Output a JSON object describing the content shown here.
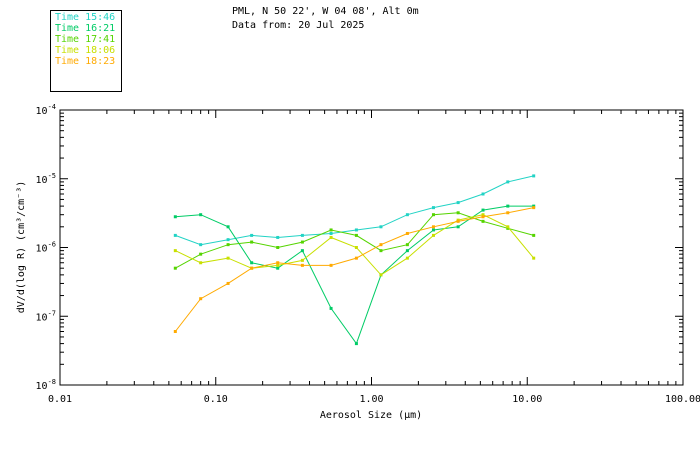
{
  "header": {
    "line1": "PML, N 50 22', W 04 08', Alt 0m",
    "line2": "Data from: 20 Jul 2025"
  },
  "chart_data": {
    "type": "line",
    "title": "PML, N 50 22', W 04 08', Alt 0m",
    "subtitle": "Data from: 20 Jul 2025",
    "xlabel": "Aerosol Size (µm)",
    "ylabel": "dV/d(log R) (cm³/cm⁻³)",
    "xscale": "log",
    "yscale": "log",
    "xlim": [
      0.01,
      100
    ],
    "ylim": [
      1e-08,
      0.0001
    ],
    "x_ticks": [
      "0.01",
      "0.10",
      "1.00",
      "10.00",
      "100.00"
    ],
    "y_ticks": [
      {
        "mant": "10",
        "exp": "-8",
        "value": 1e-08
      },
      {
        "mant": "10",
        "exp": "-7",
        "value": 1e-07
      },
      {
        "mant": "10",
        "exp": "-6",
        "value": 1e-06
      },
      {
        "mant": "10",
        "exp": "-5",
        "value": 1e-05
      },
      {
        "mant": "10",
        "exp": "-4",
        "value": 0.0001
      }
    ],
    "grid": false,
    "legend_position": "top-left",
    "series": [
      {
        "name": "Time 15:46",
        "color": "#22d3c5",
        "x": [
          0.055,
          0.08,
          0.12,
          0.17,
          0.25,
          0.36,
          0.55,
          0.8,
          1.15,
          1.7,
          2.5,
          3.6,
          5.2,
          7.5,
          11.0
        ],
        "y": [
          1.5e-06,
          1.1e-06,
          1.3e-06,
          1.5e-06,
          1.4e-06,
          1.5e-06,
          1.6e-06,
          1.8e-06,
          2e-06,
          3e-06,
          3.8e-06,
          4.5e-06,
          6e-06,
          9e-06,
          1.1e-05
        ]
      },
      {
        "name": "Time 16:21",
        "color": "#00cc66",
        "x": [
          0.055,
          0.08,
          0.12,
          0.17,
          0.25,
          0.36,
          0.55,
          0.8,
          1.15,
          1.7,
          2.5,
          3.6,
          5.2,
          7.5,
          11.0
        ],
        "y": [
          2.8e-06,
          3e-06,
          2e-06,
          6e-07,
          5e-07,
          9e-07,
          1.3e-07,
          4e-08,
          4e-07,
          9e-07,
          1.8e-06,
          2e-06,
          3.5e-06,
          4e-06,
          4e-06
        ]
      },
      {
        "name": "Time 17:41",
        "color": "#55d400",
        "x": [
          0.055,
          0.08,
          0.12,
          0.17,
          0.25,
          0.36,
          0.55,
          0.8,
          1.15,
          1.7,
          2.5,
          3.6,
          5.2,
          7.5,
          11.0
        ],
        "y": [
          5e-07,
          8e-07,
          1.1e-06,
          1.2e-06,
          1e-06,
          1.2e-06,
          1.8e-06,
          1.5e-06,
          9e-07,
          1.1e-06,
          3e-06,
          3.2e-06,
          2.4e-06,
          1.9e-06,
          1.5e-06
        ]
      },
      {
        "name": "Time 18:06",
        "color": "#c8e000",
        "x": [
          0.055,
          0.08,
          0.12,
          0.17,
          0.25,
          0.36,
          0.55,
          0.8,
          1.15,
          1.7,
          2.5,
          3.6,
          5.2,
          7.5,
          11.0
        ],
        "y": [
          9e-07,
          6e-07,
          7e-07,
          5e-07,
          5.5e-07,
          6.5e-07,
          1.4e-06,
          1e-06,
          4e-07,
          7e-07,
          1.5e-06,
          2.5e-06,
          3e-06,
          2e-06,
          7e-07
        ]
      },
      {
        "name": "Time 18:23",
        "color": "#ffaa00",
        "x": [
          0.055,
          0.08,
          0.12,
          0.17,
          0.25,
          0.36,
          0.55,
          0.8,
          1.15,
          1.7,
          2.5,
          3.6,
          5.2,
          7.5,
          11.0
        ],
        "y": [
          6e-08,
          1.8e-07,
          3e-07,
          5e-07,
          6e-07,
          5.5e-07,
          5.5e-07,
          7e-07,
          1.1e-06,
          1.6e-06,
          2e-06,
          2.4e-06,
          2.8e-06,
          3.2e-06,
          3.8e-06
        ]
      }
    ]
  }
}
